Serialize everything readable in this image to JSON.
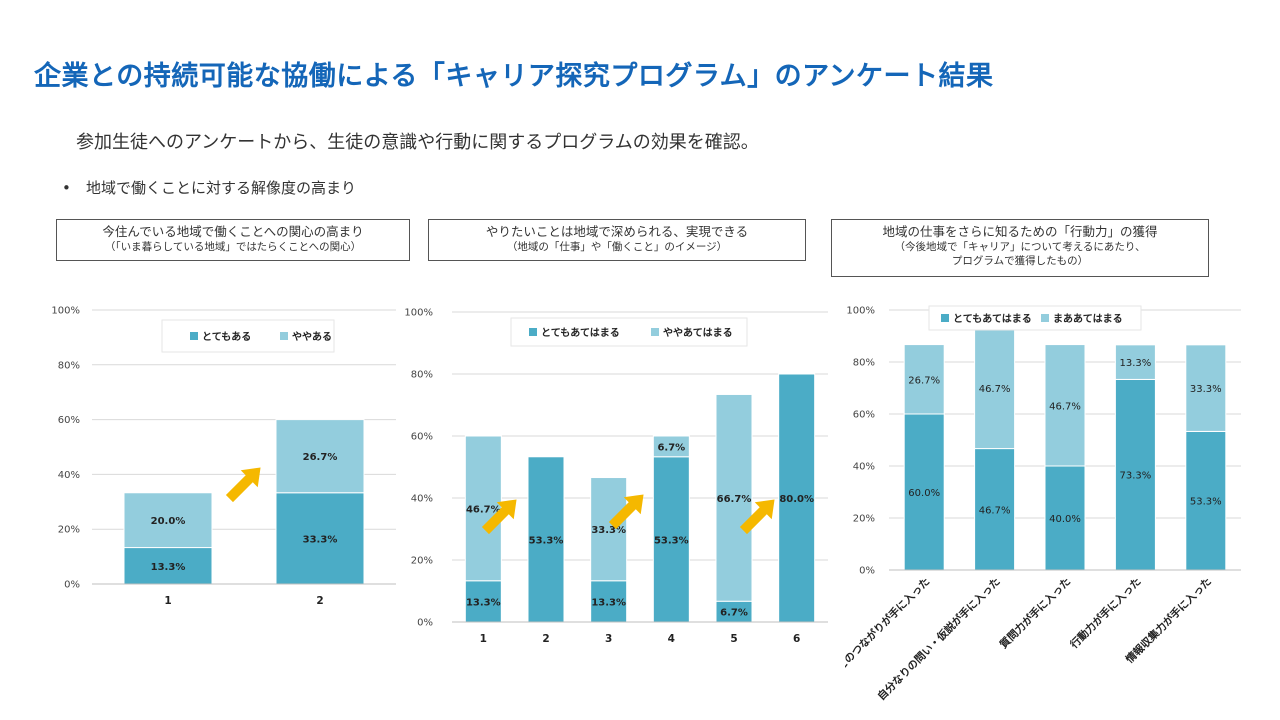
{
  "header": {
    "title": "企業との持続可能な協働による「キャリア探究プログラム」のアンケート結果",
    "subtitle": "参加生徒へのアンケートから、生徒の意識や行動に関するプログラムの効果を確認。",
    "bullet": "•",
    "bullet_text": "地域で働くことに対する解像度の高まり"
  },
  "boxes": [
    {
      "line1": "今住んでいる地域で働くことへの関心の高まり",
      "line2": "（「いま暮らしている地域」ではたらくことへの関心）"
    },
    {
      "line1": "やりたいことは地域で深められる、実現できる",
      "line2": "（地域の「仕事」や「働くこと」のイメージ）"
    },
    {
      "line1": "地域の仕事をさらに知るための「行動力」の獲得",
      "line2": "（今後地域で「キャリア」について考えるにあたり、",
      "line3": "プログラムで獲得したもの）"
    }
  ],
  "colors": {
    "dark": "#4bacc6",
    "light": "#93cddd",
    "arrow": "#f5b800",
    "grid": "#d9d9d9",
    "title": "#1466b8"
  },
  "chart_data": [
    {
      "type": "bar",
      "stacked": true,
      "categories": [
        "1",
        "2"
      ],
      "series": [
        {
          "name": "とてもある",
          "values": [
            13.3,
            33.3
          ],
          "labels": [
            "13.3%",
            "33.3%"
          ]
        },
        {
          "name": "ややある",
          "values": [
            20.0,
            26.7
          ],
          "labels": [
            "20.0%",
            "26.7%"
          ]
        }
      ],
      "yticks": [
        "0%",
        "20%",
        "40%",
        "60%",
        "80%",
        "100%"
      ],
      "ylim": [
        0,
        100
      ],
      "grid": true,
      "legend": "top"
    },
    {
      "type": "bar",
      "stacked": true,
      "categories": [
        "1",
        "2",
        "3",
        "4",
        "5",
        "6"
      ],
      "series": [
        {
          "name": "とてもあてはまる",
          "values": [
            13.3,
            53.3,
            13.3,
            53.3,
            6.7,
            80.0
          ],
          "labels": [
            "13.3%",
            "53.3%",
            "13.3%",
            "53.3%",
            "6.7%",
            "80.0%"
          ]
        },
        {
          "name": "ややあてはまる",
          "values": [
            46.7,
            0,
            33.3,
            6.7,
            66.7,
            0
          ],
          "labels": [
            "46.7%",
            "",
            "33.3%",
            "6.7%",
            "66.7%",
            ""
          ]
        }
      ],
      "yticks": [
        "0%",
        "20%",
        "40%",
        "60%",
        "80%",
        "100%"
      ],
      "ylim": [
        0,
        100
      ],
      "grid": true,
      "legend": "top"
    },
    {
      "type": "bar",
      "stacked": true,
      "categories": [
        "人とのつながりが手に入った",
        "自分なりの問い・仮説が手に入った",
        "質問力が手に入った",
        "行動力が手に入った",
        "情報収集力が手に入った"
      ],
      "series": [
        {
          "name": "とてもあてはまる",
          "values": [
            60.0,
            46.7,
            40.0,
            73.3,
            53.3
          ],
          "labels": [
            "60.0%",
            "46.7%",
            "40.0%",
            "73.3%",
            "53.3%"
          ]
        },
        {
          "name": "まああてはまる",
          "values": [
            26.7,
            46.7,
            46.7,
            13.3,
            33.3
          ],
          "labels": [
            "26.7%",
            "46.7%",
            "46.7%",
            "13.3%",
            "33.3%"
          ]
        }
      ],
      "yticks": [
        "0%",
        "20%",
        "40%",
        "60%",
        "80%",
        "100%"
      ],
      "ylim": [
        0,
        100
      ],
      "grid": true,
      "legend": "top"
    }
  ]
}
